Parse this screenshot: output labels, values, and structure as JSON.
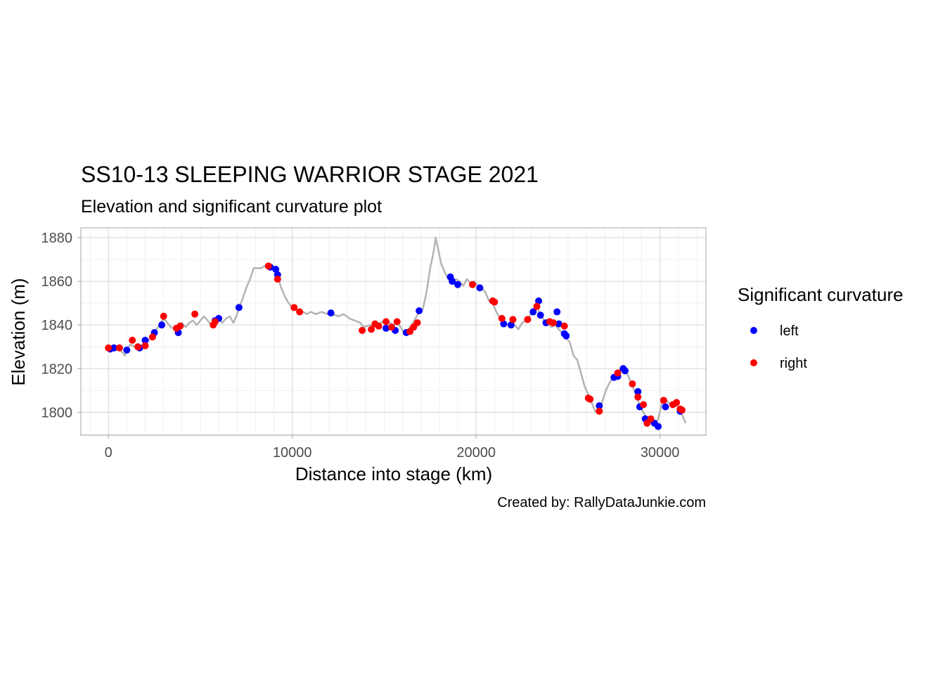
{
  "chart_data": {
    "type": "scatter",
    "title": "SS10-13 SLEEPING WARRIOR STAGE 2021",
    "subtitle": "Elevation and significant curvature plot",
    "xlabel": "Distance into stage (km)",
    "ylabel": "Elevation (m)",
    "caption": "Created by: RallyDataJunkie.com",
    "xlim": [
      -1500,
      32500
    ],
    "ylim": [
      1789.5,
      1884.5
    ],
    "x_ticks": [
      0,
      10000,
      20000,
      30000
    ],
    "x_tick_labels": [
      "0",
      "10000",
      "20000",
      "30000"
    ],
    "y_ticks": [
      1800,
      1820,
      1840,
      1860,
      1880
    ],
    "y_tick_labels": [
      "1800",
      "1820",
      "1840",
      "1860",
      "1880"
    ],
    "grid": true,
    "legend": {
      "title": "Significant curvature",
      "position": "right"
    },
    "profile": {
      "color": "#b3b3b3",
      "points": [
        [
          0,
          1829
        ],
        [
          300,
          1829
        ],
        [
          600,
          1829
        ],
        [
          800,
          1827
        ],
        [
          900,
          1826
        ],
        [
          1000,
          1829
        ],
        [
          1200,
          1831
        ],
        [
          1400,
          1830
        ],
        [
          1600,
          1831
        ],
        [
          1800,
          1829
        ],
        [
          2000,
          1831
        ],
        [
          2200,
          1833
        ],
        [
          2400,
          1836
        ],
        [
          2600,
          1838
        ],
        [
          2800,
          1840
        ],
        [
          3000,
          1843
        ],
        [
          3200,
          1841
        ],
        [
          3400,
          1839
        ],
        [
          3600,
          1838
        ],
        [
          3800,
          1840
        ],
        [
          4000,
          1841
        ],
        [
          4200,
          1839
        ],
        [
          4400,
          1841
        ],
        [
          4600,
          1842
        ],
        [
          4800,
          1840
        ],
        [
          5000,
          1842
        ],
        [
          5200,
          1844
        ],
        [
          5400,
          1842
        ],
        [
          5600,
          1840
        ],
        [
          5800,
          1841
        ],
        [
          6000,
          1843
        ],
        [
          6200,
          1841
        ],
        [
          6400,
          1843
        ],
        [
          6600,
          1844
        ],
        [
          6800,
          1841
        ],
        [
          7000,
          1845
        ],
        [
          7100,
          1848
        ],
        [
          7300,
          1852
        ],
        [
          7500,
          1857
        ],
        [
          7700,
          1861
        ],
        [
          7900,
          1866
        ],
        [
          8100,
          1866
        ],
        [
          8300,
          1866
        ],
        [
          8500,
          1867
        ],
        [
          8700,
          1866
        ],
        [
          8800,
          1867
        ],
        [
          9000,
          1866
        ],
        [
          9200,
          1862
        ],
        [
          9400,
          1857
        ],
        [
          9600,
          1853
        ],
        [
          9800,
          1850
        ],
        [
          10000,
          1848
        ],
        [
          10200,
          1847
        ],
        [
          10400,
          1845
        ],
        [
          10600,
          1846
        ],
        [
          10800,
          1845
        ],
        [
          11000,
          1846
        ],
        [
          11300,
          1845
        ],
        [
          11600,
          1846
        ],
        [
          11900,
          1845
        ],
        [
          12200,
          1845
        ],
        [
          12500,
          1844
        ],
        [
          12800,
          1845
        ],
        [
          13100,
          1843
        ],
        [
          13400,
          1842
        ],
        [
          13700,
          1841
        ],
        [
          13900,
          1839
        ],
        [
          14200,
          1840
        ],
        [
          14500,
          1840
        ],
        [
          14800,
          1841
        ],
        [
          15100,
          1842
        ],
        [
          15300,
          1841
        ],
        [
          15500,
          1840
        ],
        [
          15700,
          1841
        ],
        [
          15900,
          1839
        ],
        [
          16100,
          1836
        ],
        [
          16300,
          1838
        ],
        [
          16500,
          1840
        ],
        [
          16700,
          1843
        ],
        [
          16900,
          1846
        ],
        [
          17100,
          1847
        ],
        [
          17300,
          1855
        ],
        [
          17500,
          1866
        ],
        [
          17700,
          1874
        ],
        [
          17800,
          1880
        ],
        [
          17900,
          1876
        ],
        [
          18100,
          1868
        ],
        [
          18300,
          1864
        ],
        [
          18500,
          1861
        ],
        [
          18700,
          1859
        ],
        [
          18900,
          1861
        ],
        [
          19100,
          1860
        ],
        [
          19300,
          1858
        ],
        [
          19500,
          1861
        ],
        [
          19700,
          1859
        ],
        [
          19900,
          1860
        ],
        [
          20100,
          1858
        ],
        [
          20300,
          1857
        ],
        [
          20500,
          1855
        ],
        [
          20700,
          1851
        ],
        [
          20900,
          1850
        ],
        [
          21100,
          1846
        ],
        [
          21300,
          1843
        ],
        [
          21500,
          1841
        ],
        [
          21700,
          1840
        ],
        [
          21900,
          1841
        ],
        [
          22100,
          1840
        ],
        [
          22300,
          1838
        ],
        [
          22500,
          1841
        ],
        [
          22700,
          1842
        ],
        [
          22900,
          1844
        ],
        [
          23100,
          1846
        ],
        [
          23300,
          1848
        ],
        [
          23500,
          1845
        ],
        [
          23700,
          1842
        ],
        [
          23900,
          1841
        ],
        [
          24100,
          1839
        ],
        [
          24300,
          1840
        ],
        [
          24500,
          1838
        ],
        [
          24700,
          1836
        ],
        [
          24900,
          1834
        ],
        [
          25100,
          1832
        ],
        [
          25300,
          1826
        ],
        [
          25500,
          1824
        ],
        [
          25700,
          1818
        ],
        [
          25900,
          1812
        ],
        [
          26100,
          1808
        ],
        [
          26300,
          1804
        ],
        [
          26500,
          1800
        ],
        [
          26700,
          1801
        ],
        [
          26900,
          1806
        ],
        [
          27100,
          1811
        ],
        [
          27300,
          1814
        ],
        [
          27500,
          1817
        ],
        [
          27700,
          1819
        ],
        [
          27900,
          1820
        ],
        [
          28100,
          1820
        ],
        [
          28300,
          1816
        ],
        [
          28500,
          1812
        ],
        [
          28700,
          1808
        ],
        [
          28900,
          1803
        ],
        [
          29100,
          1800
        ],
        [
          29300,
          1797
        ],
        [
          29500,
          1795
        ],
        [
          29700,
          1794
        ],
        [
          29900,
          1797
        ],
        [
          30100,
          1804
        ],
        [
          30300,
          1806
        ],
        [
          30500,
          1804
        ],
        [
          30700,
          1803
        ],
        [
          30900,
          1803
        ],
        [
          31100,
          1801
        ],
        [
          31300,
          1797
        ],
        [
          31400,
          1795
        ]
      ]
    },
    "series": [
      {
        "name": "left",
        "color": "#0000ff",
        "points": [
          [
            100,
            1829
          ],
          [
            300,
            1829.5
          ],
          [
            1000,
            1828.5
          ],
          [
            1700,
            1829.5
          ],
          [
            2000,
            1833
          ],
          [
            2500,
            1836.5
          ],
          [
            2900,
            1840
          ],
          [
            3800,
            1836.5
          ],
          [
            5800,
            1842
          ],
          [
            6000,
            1843
          ],
          [
            7100,
            1848
          ],
          [
            8800,
            1866.5
          ],
          [
            9100,
            1865.5
          ],
          [
            9200,
            1863
          ],
          [
            12100,
            1845.5
          ],
          [
            15100,
            1838.5
          ],
          [
            15600,
            1837.5
          ],
          [
            16200,
            1836.5
          ],
          [
            16900,
            1846.5
          ],
          [
            18600,
            1862
          ],
          [
            18700,
            1860
          ],
          [
            19000,
            1858.5
          ],
          [
            20200,
            1857
          ],
          [
            21500,
            1840.5
          ],
          [
            21900,
            1840
          ],
          [
            23100,
            1846
          ],
          [
            23400,
            1851
          ],
          [
            23500,
            1844.5
          ],
          [
            23800,
            1841
          ],
          [
            24400,
            1846
          ],
          [
            24500,
            1840.5
          ],
          [
            24800,
            1836
          ],
          [
            24900,
            1835
          ],
          [
            26700,
            1803
          ],
          [
            27500,
            1816
          ],
          [
            27700,
            1816.5
          ],
          [
            28000,
            1820
          ],
          [
            28100,
            1819
          ],
          [
            28800,
            1809.5
          ],
          [
            28900,
            1802.5
          ],
          [
            29200,
            1797
          ],
          [
            29700,
            1795
          ],
          [
            29900,
            1793.5
          ],
          [
            30300,
            1802.5
          ],
          [
            31100,
            1800.5
          ]
        ]
      },
      {
        "name": "right",
        "color": "#ff0000",
        "points": [
          [
            0,
            1829.5
          ],
          [
            600,
            1829.5
          ],
          [
            1300,
            1833
          ],
          [
            1600,
            1830
          ],
          [
            2000,
            1830.5
          ],
          [
            2400,
            1834.5
          ],
          [
            3000,
            1844
          ],
          [
            3700,
            1838.5
          ],
          [
            3900,
            1839.5
          ],
          [
            4700,
            1845
          ],
          [
            5700,
            1840
          ],
          [
            5800,
            1841.5
          ],
          [
            8700,
            1867
          ],
          [
            9200,
            1861
          ],
          [
            10100,
            1848
          ],
          [
            10400,
            1846
          ],
          [
            13800,
            1837.5
          ],
          [
            14300,
            1838
          ],
          [
            14500,
            1840.5
          ],
          [
            14700,
            1839.5
          ],
          [
            15100,
            1841.5
          ],
          [
            15400,
            1839
          ],
          [
            15700,
            1841.5
          ],
          [
            16400,
            1837
          ],
          [
            16600,
            1839
          ],
          [
            16800,
            1841
          ],
          [
            19800,
            1858.5
          ],
          [
            20900,
            1851
          ],
          [
            21000,
            1850.5
          ],
          [
            21400,
            1843
          ],
          [
            22000,
            1842.5
          ],
          [
            22800,
            1842.5
          ],
          [
            23300,
            1848.5
          ],
          [
            24000,
            1841.5
          ],
          [
            24200,
            1841
          ],
          [
            24800,
            1839.5
          ],
          [
            26100,
            1806.5
          ],
          [
            26200,
            1806
          ],
          [
            26700,
            1800.5
          ],
          [
            27700,
            1818
          ],
          [
            28500,
            1813
          ],
          [
            28800,
            1807
          ],
          [
            29100,
            1803.5
          ],
          [
            29300,
            1795
          ],
          [
            29500,
            1797
          ],
          [
            30200,
            1805.5
          ],
          [
            30700,
            1803.5
          ],
          [
            30900,
            1804.5
          ],
          [
            31100,
            1801.5
          ],
          [
            31200,
            1801
          ]
        ]
      }
    ]
  }
}
